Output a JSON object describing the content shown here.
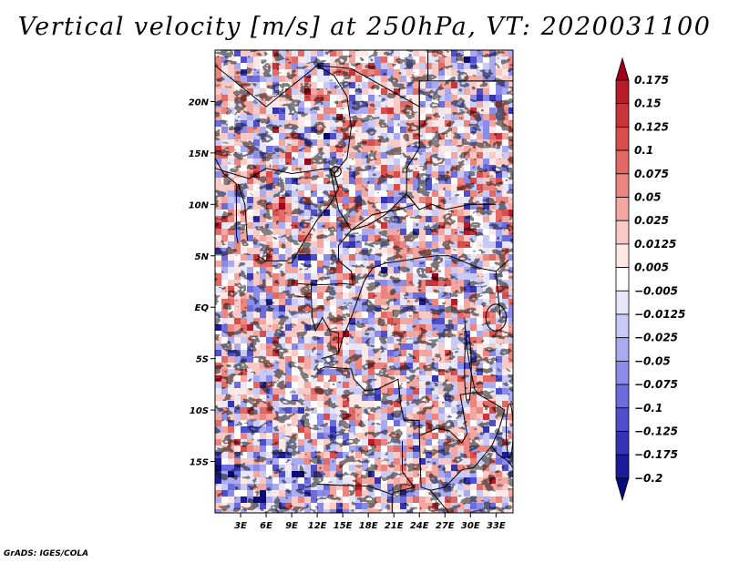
{
  "title": "Vertical velocity [m/s] at 250hPa, VT: 2020031100",
  "credit": "GrADS: IGES/COLA",
  "chart_data": {
    "type": "heatmap",
    "title": "Vertical velocity [m/s] at 250hPa, VT: 2020031100",
    "variable": "Vertical velocity",
    "units": "m/s",
    "level": "250hPa",
    "valid_time": "2020031100",
    "x_axis": {
      "range": [
        0,
        35
      ],
      "ticks": [
        3,
        6,
        9,
        12,
        15,
        18,
        21,
        24,
        27,
        30,
        33
      ],
      "tick_labels": [
        "3E",
        "6E",
        "9E",
        "12E",
        "15E",
        "18E",
        "21E",
        "24E",
        "27E",
        "30E",
        "33E"
      ]
    },
    "y_axis": {
      "range": [
        -20,
        25
      ],
      "ticks": [
        20,
        15,
        10,
        5,
        0,
        -5,
        -10,
        -15
      ],
      "tick_labels": [
        "20N",
        "15N",
        "10N",
        "5N",
        "EQ",
        "5S",
        "10S",
        "15S"
      ]
    },
    "colorbar": {
      "levels": [
        0.175,
        0.15,
        0.125,
        0.1,
        0.075,
        0.05,
        0.025,
        0.0125,
        0.005,
        -0.005,
        -0.0125,
        -0.025,
        -0.05,
        -0.075,
        -0.1,
        -0.125,
        -0.175,
        -0.2
      ],
      "labels": [
        "0.175",
        "0.15",
        "0.125",
        "0.1",
        "0.075",
        "0.05",
        "0.025",
        "0.0125",
        "0.005",
        "−0.005",
        "−0.0125",
        "−0.025",
        "−0.05",
        "−0.075",
        "−0.1",
        "−0.125",
        "−0.175",
        "−0.2"
      ],
      "colors": [
        "#a1001c",
        "#b81c2b",
        "#c9353a",
        "#d74e4d",
        "#e26a65",
        "#ea867f",
        "#f2a7a1",
        "#f8c9c5",
        "#fde8e6",
        "#ffffff",
        "#e6e6fb",
        "#c9c9f6",
        "#aaaaf0",
        "#8b8be8",
        "#6c6cdc",
        "#4f4fcb",
        "#3434b5",
        "#1c1c9a",
        "#0c0c78"
      ],
      "orientation": "vertical",
      "extend": "both"
    }
  }
}
